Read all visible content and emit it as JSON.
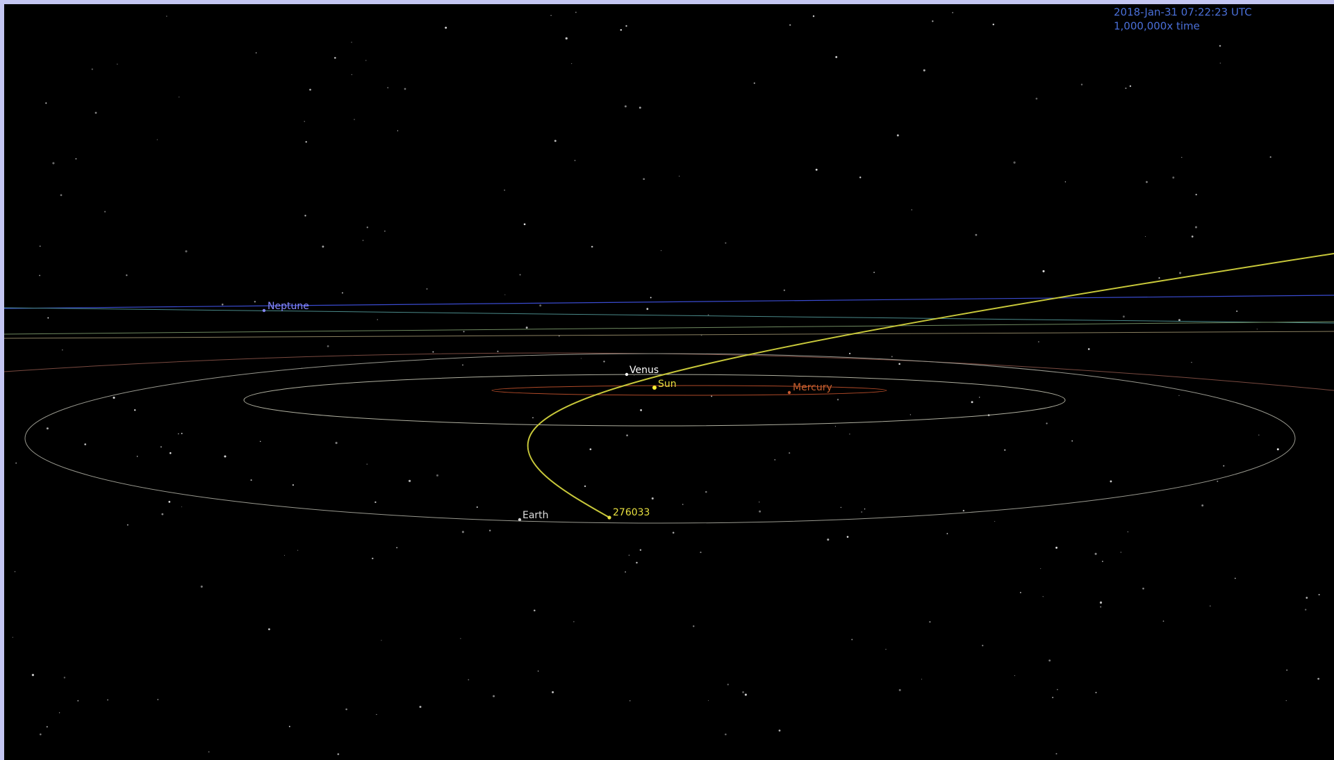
{
  "overlay": {
    "date": "2018-Jan-31 07:22:23 UTC",
    "rate": "1,000,000x time"
  },
  "bodies": [
    {
      "label": "Neptune"
    },
    {
      "label": "Venus"
    },
    {
      "label": "Sun"
    },
    {
      "label": "Mercury"
    },
    {
      "label": "Earth"
    },
    {
      "label": "276033"
    }
  ]
}
